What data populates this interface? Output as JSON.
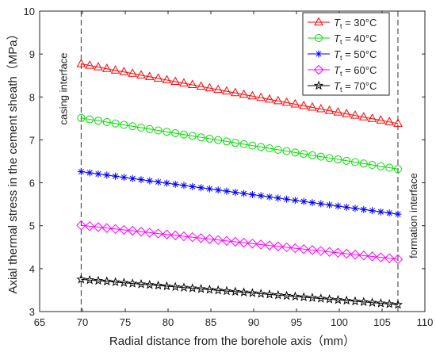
{
  "chart_data": {
    "type": "line",
    "xlabel": "Radial distance from the borehole axis（mm）",
    "ylabel": "Axial thermal stress in the cement sheath（MPa）",
    "xlim": [
      65,
      110
    ],
    "ylim": [
      3,
      10
    ],
    "xticks": [
      65,
      70,
      75,
      80,
      85,
      90,
      95,
      100,
      105,
      110
    ],
    "yticks": [
      3,
      4,
      5,
      6,
      7,
      8,
      9,
      10
    ],
    "grid": false,
    "legend_position": "top-right",
    "x": [
      69.85,
      70.85,
      71.85,
      72.85,
      73.85,
      74.85,
      75.85,
      76.85,
      77.85,
      78.85,
      79.85,
      80.85,
      81.85,
      82.85,
      83.85,
      84.85,
      85.85,
      86.85,
      87.85,
      88.85,
      89.85,
      90.85,
      91.85,
      92.85,
      93.85,
      94.85,
      95.85,
      96.85,
      97.85,
      98.85,
      99.85,
      100.85,
      101.85,
      102.85,
      103.85,
      104.85,
      105.85,
      106.85
    ],
    "series": [
      {
        "name": "T_t = 30°C",
        "label_main": "T",
        "label_sub": "t",
        "label_rest": " = 30°C",
        "color": "#ff0000",
        "marker": "triangle",
        "start": 8.77,
        "end": 7.38
      },
      {
        "name": "T_t = 40°C",
        "label_main": "T",
        "label_sub": "t",
        "label_rest": " = 40°C",
        "color": "#00dd00",
        "marker": "circle",
        "start": 7.51,
        "end": 6.32
      },
      {
        "name": "T_t = 50°C",
        "label_main": "T",
        "label_sub": "t",
        "label_rest": " = 50°C",
        "color": "#0000ff",
        "marker": "asterisk",
        "start": 6.26,
        "end": 5.27
      },
      {
        "name": "T_t = 60°C",
        "label_main": "T",
        "label_sub": "t",
        "label_rest": " = 60°C",
        "color": "#ff00ff",
        "marker": "diamond",
        "start": 5.01,
        "end": 4.22
      },
      {
        "name": "T_t = 70°C",
        "label_main": "T",
        "label_sub": "t",
        "label_rest": " = 70°C",
        "color": "#000000",
        "marker": "star",
        "start": 3.75,
        "end": 3.16
      }
    ],
    "reference_lines": [
      {
        "x": 69.85,
        "label": "casing interface"
      },
      {
        "x": 106.85,
        "label": "formation interface"
      }
    ]
  }
}
